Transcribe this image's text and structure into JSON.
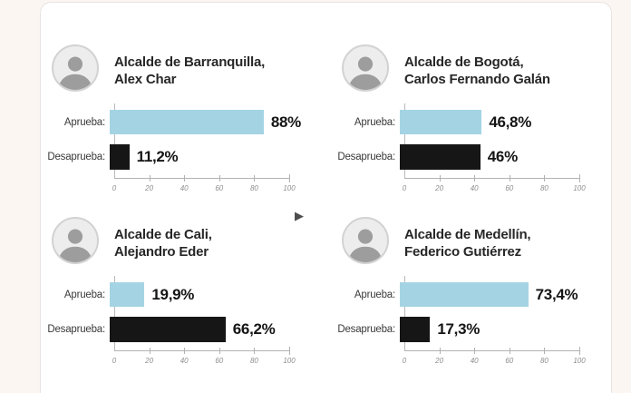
{
  "labels": {
    "approve": "Aprueba:",
    "disapprove": "Desaprueba:"
  },
  "colors": {
    "approve_bar": "#a4d4e4",
    "disapprove_bar": "#161616",
    "card_bg": "#ffffff",
    "page_bg": "#fcf6f3"
  },
  "axis": {
    "ticks": [
      "0",
      "20",
      "40",
      "60",
      "80",
      "100"
    ],
    "min": 0,
    "max": 100
  },
  "cursor": {
    "glyph": "▶"
  },
  "panels": [
    {
      "title_line1": "Alcalde de Barranquilla,",
      "title_line2": "Alex Char",
      "bars": [
        {
          "label": "Aprueba:",
          "value": 88,
          "display": "88%"
        },
        {
          "label": "Desaprueba:",
          "value": 11.2,
          "display": "11,2%"
        }
      ]
    },
    {
      "title_line1": "Alcalde de Bogotá,",
      "title_line2": "Carlos Fernando Galán",
      "bars": [
        {
          "label": "Aprueba:",
          "value": 46.8,
          "display": "46,8%"
        },
        {
          "label": "Desaprueba:",
          "value": 46,
          "display": "46%"
        }
      ]
    },
    {
      "title_line1": "Alcalde de Cali,",
      "title_line2": "Alejandro Eder",
      "bars": [
        {
          "label": "Aprueba:",
          "value": 19.9,
          "display": "19,9%"
        },
        {
          "label": "Desaprueba:",
          "value": 66.2,
          "display": "66,2%"
        }
      ]
    },
    {
      "title_line1": "Alcalde de Medellín,",
      "title_line2": "Federico Gutiérrez",
      "bars": [
        {
          "label": "Aprueba:",
          "value": 73.4,
          "display": "73,4%"
        },
        {
          "label": "Desaprueba:",
          "value": 17.3,
          "display": "17,3%"
        }
      ]
    }
  ],
  "chart_data": [
    {
      "type": "bar",
      "orientation": "horizontal",
      "title": "Alcalde de Barranquilla, Alex Char",
      "categories": [
        "Aprueba",
        "Desaprueba"
      ],
      "values": [
        88,
        11.2
      ],
      "value_labels": [
        "88%",
        "11,2%"
      ],
      "xlim": [
        0,
        100
      ],
      "x_ticks": [
        0,
        20,
        40,
        60,
        80,
        100
      ],
      "series_colors": [
        "#a4d4e4",
        "#161616"
      ],
      "grid": false,
      "legend": false
    },
    {
      "type": "bar",
      "orientation": "horizontal",
      "title": "Alcalde de Bogotá, Carlos Fernando Galán",
      "categories": [
        "Aprueba",
        "Desaprueba"
      ],
      "values": [
        46.8,
        46
      ],
      "value_labels": [
        "46,8%",
        "46%"
      ],
      "xlim": [
        0,
        100
      ],
      "x_ticks": [
        0,
        20,
        40,
        60,
        80,
        100
      ],
      "series_colors": [
        "#a4d4e4",
        "#161616"
      ],
      "grid": false,
      "legend": false
    },
    {
      "type": "bar",
      "orientation": "horizontal",
      "title": "Alcalde de Cali, Alejandro Eder",
      "categories": [
        "Aprueba",
        "Desaprueba"
      ],
      "values": [
        19.9,
        66.2
      ],
      "value_labels": [
        "19,9%",
        "66,2%"
      ],
      "xlim": [
        0,
        100
      ],
      "x_ticks": [
        0,
        20,
        40,
        60,
        80,
        100
      ],
      "series_colors": [
        "#a4d4e4",
        "#161616"
      ],
      "grid": false,
      "legend": false
    },
    {
      "type": "bar",
      "orientation": "horizontal",
      "title": "Alcalde de Medellín, Federico Gutiérrez",
      "categories": [
        "Aprueba",
        "Desaprueba"
      ],
      "values": [
        73.4,
        17.3
      ],
      "value_labels": [
        "73,4%",
        "17,3%"
      ],
      "xlim": [
        0,
        100
      ],
      "x_ticks": [
        0,
        20,
        40,
        60,
        80,
        100
      ],
      "series_colors": [
        "#a4d4e4",
        "#161616"
      ],
      "grid": false,
      "legend": false
    }
  ]
}
